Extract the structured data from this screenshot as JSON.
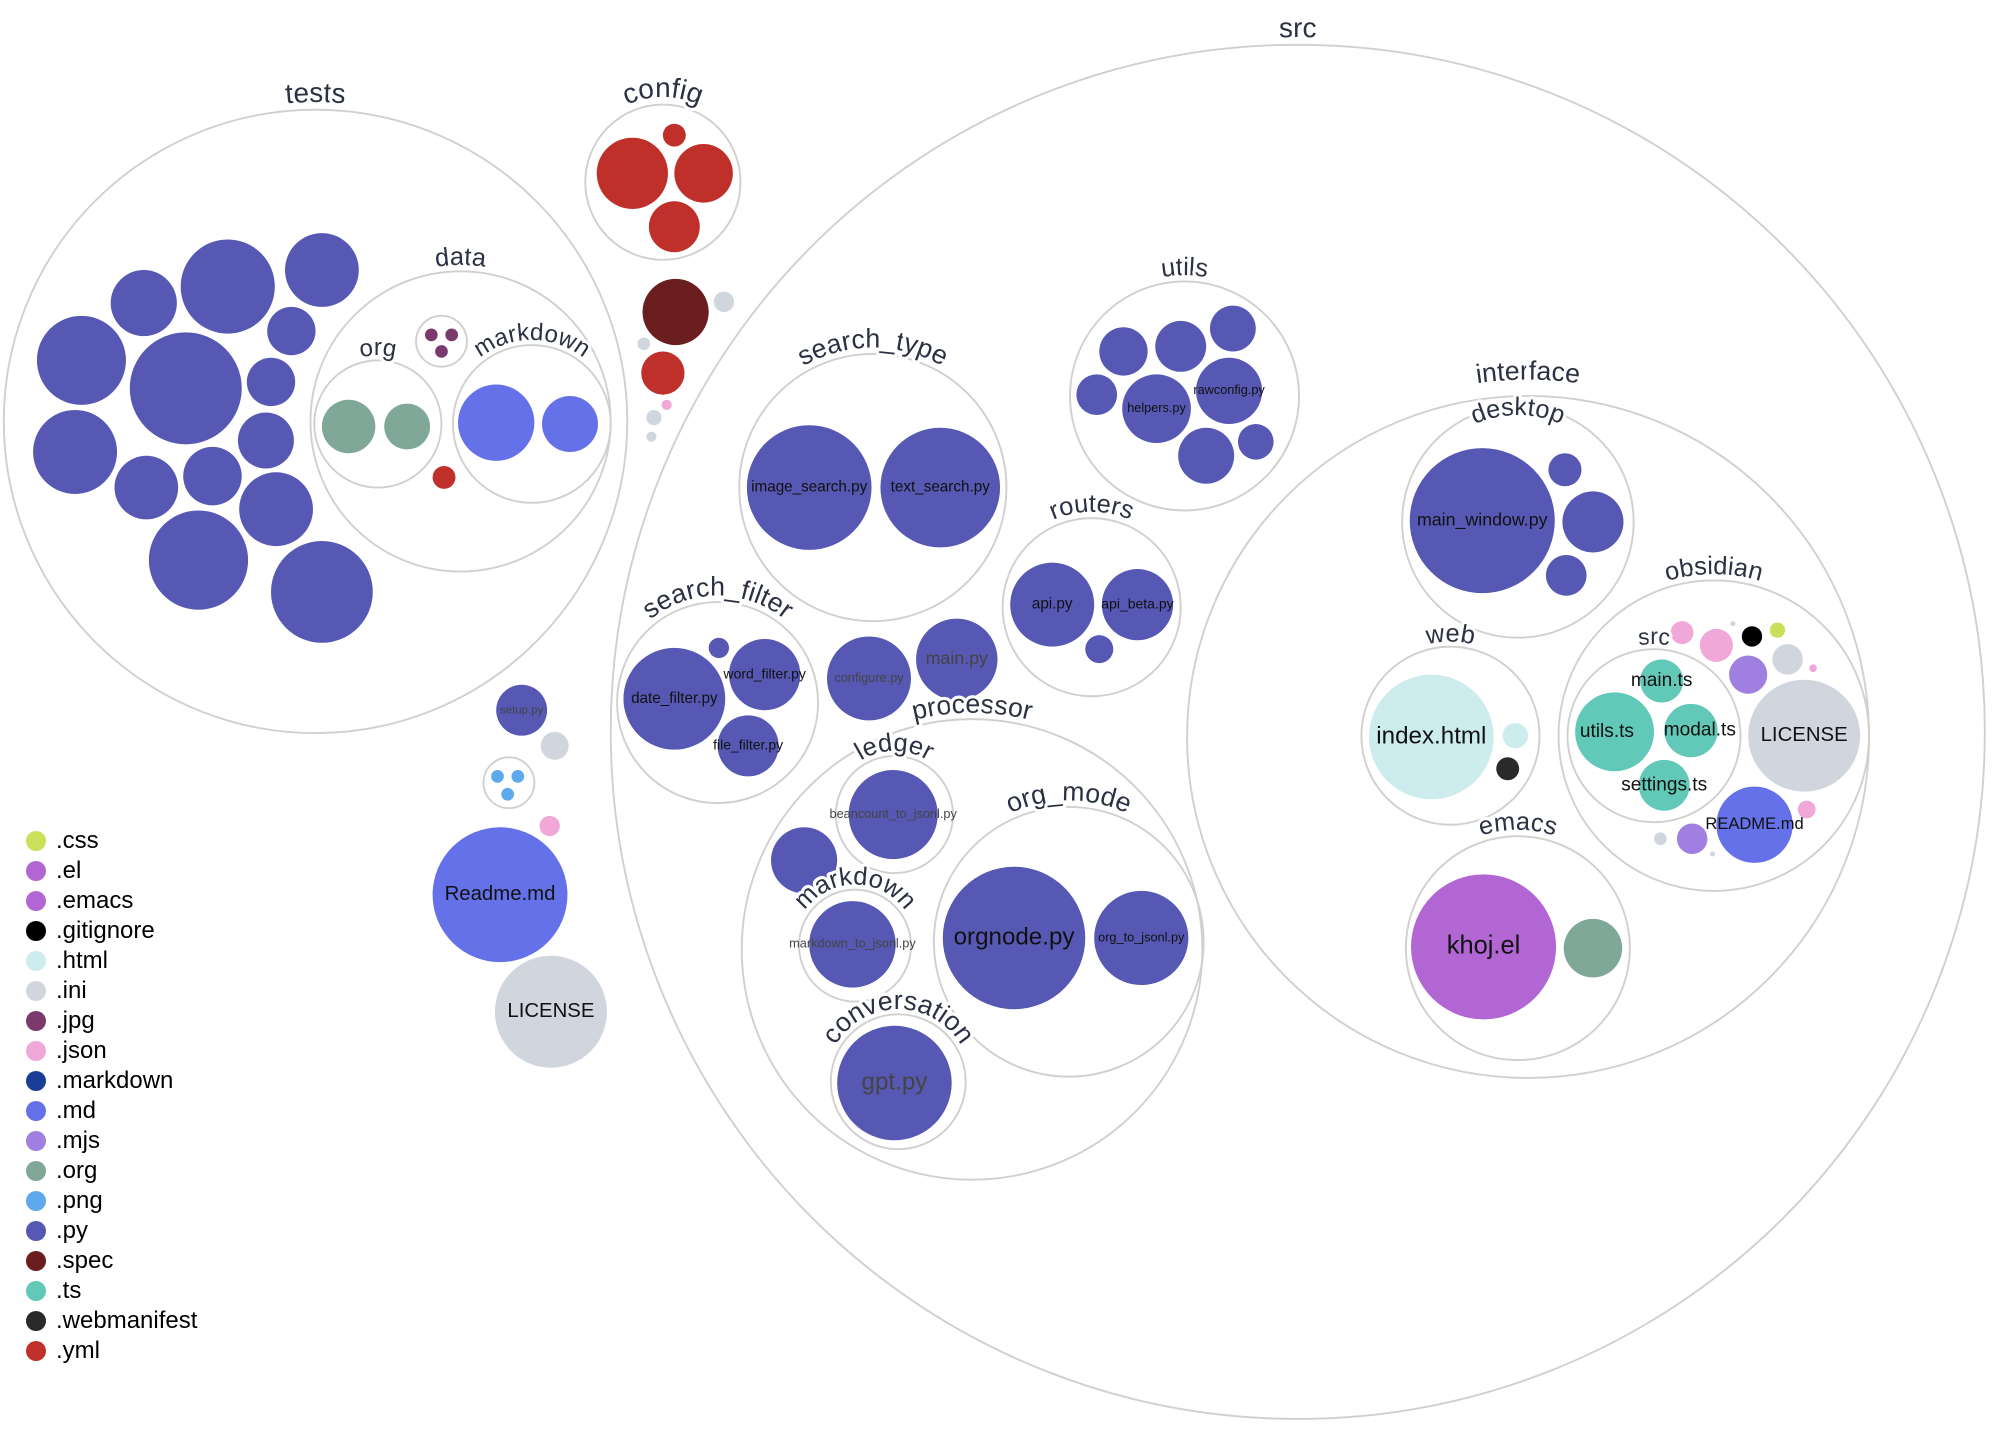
{
  "legend": [
    {
      "ext": ".css",
      "color": "#c8e05a"
    },
    {
      "ext": ".el",
      "color": "#b266d4"
    },
    {
      "ext": ".emacs",
      "color": "#b266d4"
    },
    {
      "ext": ".gitignore",
      "color": "#000000"
    },
    {
      "ext": ".html",
      "color": "#cdecee"
    },
    {
      "ext": ".ini",
      "color": "#d0d5de"
    },
    {
      "ext": ".jpg",
      "color": "#7b3a6e"
    },
    {
      "ext": ".json",
      "color": "#f0a8d8"
    },
    {
      "ext": ".markdown",
      "color": "#1a3e96"
    },
    {
      "ext": ".md",
      "color": "#6571e8"
    },
    {
      "ext": ".mjs",
      "color": "#9f7fe0"
    },
    {
      "ext": ".org",
      "color": "#80a898"
    },
    {
      "ext": ".png",
      "color": "#5ea8ec"
    },
    {
      "ext": ".py",
      "color": "#5658b4"
    },
    {
      "ext": ".spec",
      "color": "#6a1e1e"
    },
    {
      "ext": ".ts",
      "color": "#62c8b8"
    },
    {
      "ext": ".webmanifest",
      "color": "#2a2a2a"
    },
    {
      "ext": ".yml",
      "color": "#c0302a"
    }
  ],
  "folders": [
    {
      "name": "src"
    },
    {
      "name": "tests"
    },
    {
      "name": "config"
    },
    {
      "name": "data"
    },
    {
      "name": "org"
    },
    {
      "name": "markdown"
    },
    {
      "name": ""
    },
    {
      "name": "utils"
    },
    {
      "name": "search_type"
    },
    {
      "name": "routers"
    },
    {
      "name": "search_filter"
    },
    {
      "name": "processor"
    },
    {
      "name": "ledger"
    },
    {
      "name": "markdown"
    },
    {
      "name": "org_mode"
    },
    {
      "name": "conversation"
    },
    {
      "name": "interface"
    },
    {
      "name": "desktop"
    },
    {
      "name": "web"
    },
    {
      "name": "obsidian"
    },
    {
      "name": "src"
    },
    {
      "name": "emacs"
    },
    {
      "name": ""
    }
  ],
  "files": [
    {
      "label": "",
      "ext": ".py"
    },
    {
      "label": "",
      "ext": ".py"
    },
    {
      "label": "",
      "ext": ".py"
    },
    {
      "label": "",
      "ext": ".py"
    },
    {
      "label": "",
      "ext": ".py"
    },
    {
      "label": "",
      "ext": ".py"
    },
    {
      "label": "",
      "ext": ".py"
    },
    {
      "label": "",
      "ext": ".py"
    },
    {
      "label": "",
      "ext": ".py"
    },
    {
      "label": "",
      "ext": ".py"
    },
    {
      "label": "",
      "ext": ".py"
    },
    {
      "label": "",
      "ext": ".py"
    },
    {
      "label": "",
      "ext": ".py"
    },
    {
      "label": "",
      "ext": ".py"
    },
    {
      "label": "",
      "ext": ".org"
    },
    {
      "label": "",
      "ext": ".org"
    },
    {
      "label": "",
      "ext": ".md"
    },
    {
      "label": "",
      "ext": ".md"
    },
    {
      "label": "",
      "ext": ".jpg"
    },
    {
      "label": "",
      "ext": ".jpg"
    },
    {
      "label": "",
      "ext": ".jpg"
    },
    {
      "label": "",
      "ext": ".yml"
    },
    {
      "label": "",
      "ext": ".yml"
    },
    {
      "label": "",
      "ext": ".yml"
    },
    {
      "label": "",
      "ext": ".yml"
    },
    {
      "label": "",
      "ext": ".yml"
    },
    {
      "label": "",
      "ext": ".spec"
    },
    {
      "label": "",
      "ext": ".ini"
    },
    {
      "label": "",
      "ext": ".yml"
    },
    {
      "label": "",
      "ext": ".ini"
    },
    {
      "label": "",
      "ext": ".ini"
    },
    {
      "label": "",
      "ext": ".ini"
    },
    {
      "label": "",
      "ext": ".json"
    },
    {
      "label": "setup.py",
      "ext": ".py"
    },
    {
      "label": "",
      "ext": ".ini"
    },
    {
      "label": "",
      "ext": ".png"
    },
    {
      "label": "",
      "ext": ".png"
    },
    {
      "label": "",
      "ext": ".png"
    },
    {
      "label": "",
      "ext": ".json"
    },
    {
      "label": "Readme.md",
      "ext": ".md"
    },
    {
      "label": "LICENSE",
      "ext": ".ini"
    },
    {
      "label": "image_search.py",
      "ext": ".py"
    },
    {
      "label": "text_search.py",
      "ext": ".py"
    },
    {
      "label": "",
      "ext": ".py"
    },
    {
      "label": "",
      "ext": ".py"
    },
    {
      "label": "",
      "ext": ".py"
    },
    {
      "label": "",
      "ext": ".py"
    },
    {
      "label": "helpers.py",
      "ext": ".py"
    },
    {
      "label": "rawconfig.py",
      "ext": ".py"
    },
    {
      "label": "",
      "ext": ".py"
    },
    {
      "label": "",
      "ext": ".py"
    },
    {
      "label": "api.py",
      "ext": ".py"
    },
    {
      "label": "api_beta.py",
      "ext": ".py"
    },
    {
      "label": "",
      "ext": ".py"
    },
    {
      "label": "date_filter.py",
      "ext": ".py"
    },
    {
      "label": "word_filter.py",
      "ext": ".py"
    },
    {
      "label": "file_filter.py",
      "ext": ".py"
    },
    {
      "label": "",
      "ext": ".py"
    },
    {
      "label": "configure.py",
      "ext": ".py"
    },
    {
      "label": "main.py",
      "ext": ".py"
    },
    {
      "label": "beancount_to_jsonl.py",
      "ext": ".py"
    },
    {
      "label": "",
      "ext": ".py"
    },
    {
      "label": "markdown_to_jsonl.py",
      "ext": ".py"
    },
    {
      "label": "orgnode.py",
      "ext": ".py"
    },
    {
      "label": "org_to_jsonl.py",
      "ext": ".py"
    },
    {
      "label": "gpt.py",
      "ext": ".py"
    },
    {
      "label": "main_window.py",
      "ext": ".py"
    },
    {
      "label": "",
      "ext": ".py"
    },
    {
      "label": "",
      "ext": ".py"
    },
    {
      "label": "",
      "ext": ".py"
    },
    {
      "label": "index.html",
      "ext": ".html"
    },
    {
      "label": "",
      "ext": ".html"
    },
    {
      "label": "",
      "ext": ".webmanifest"
    },
    {
      "label": "main.ts",
      "ext": ".ts"
    },
    {
      "label": "utils.ts",
      "ext": ".ts"
    },
    {
      "label": "modal.ts",
      "ext": ".ts"
    },
    {
      "label": "settings.ts",
      "ext": ".ts"
    },
    {
      "label": "LICENSE",
      "ext": ".ini"
    },
    {
      "label": "README.md",
      "ext": ".md"
    },
    {
      "label": "",
      "ext": ".png"
    },
    {
      "label": "",
      "ext": ".json"
    },
    {
      "label": "",
      "ext": ".json"
    },
    {
      "label": "",
      "ext": ".ini"
    },
    {
      "label": "",
      "ext": ".gitignore"
    },
    {
      "label": "",
      "ext": ".css"
    },
    {
      "label": "",
      "ext": ".mjs"
    },
    {
      "label": "",
      "ext": ".ini"
    },
    {
      "label": "",
      "ext": ".json"
    },
    {
      "label": "",
      "ext": ".json"
    },
    {
      "label": "",
      "ext": ".ini"
    },
    {
      "label": "",
      "ext": ".mjs"
    },
    {
      "label": "",
      "ext": ".ini"
    },
    {
      "label": "khoj.el",
      "ext": ".el"
    },
    {
      "label": "",
      "ext": ".org"
    }
  ]
}
